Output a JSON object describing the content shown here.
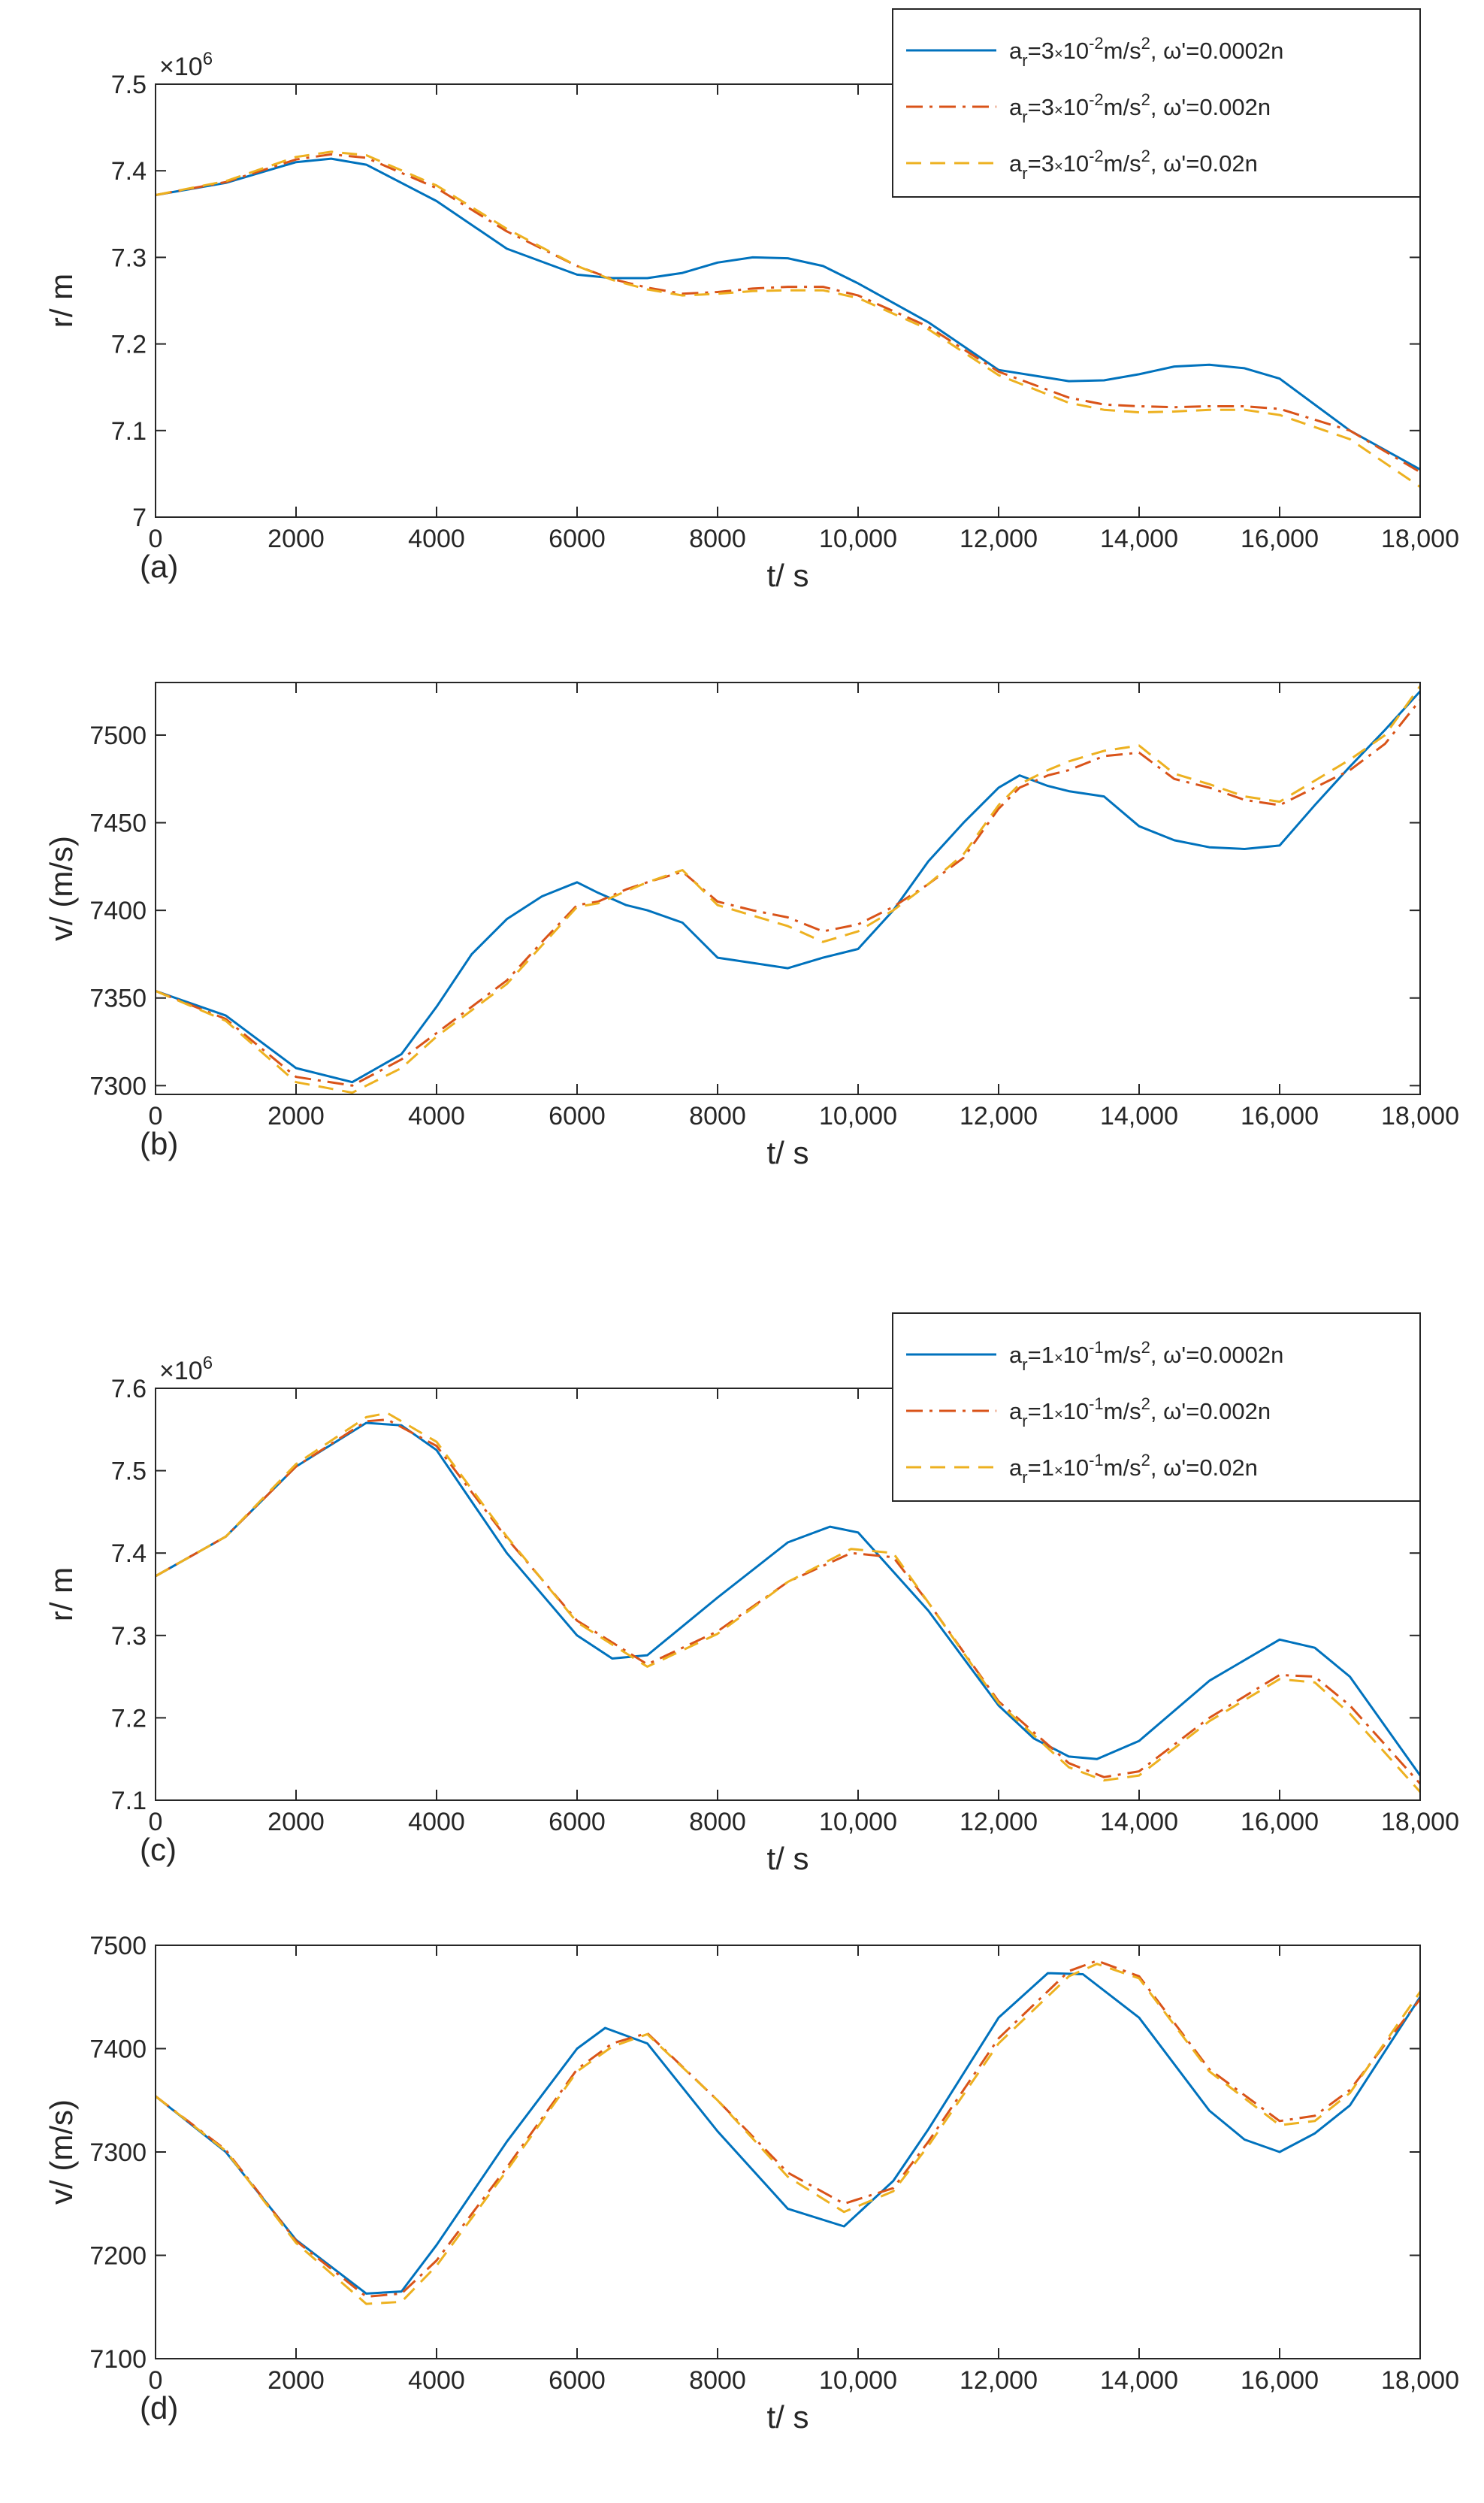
{
  "colors": {
    "blue": "#0072BD",
    "red": "#D95319",
    "orange": "#EDB120",
    "axis": "#262626"
  },
  "chart_data": [
    {
      "panel": "(a)",
      "type": "line",
      "title": "",
      "xlabel": "t/ s",
      "ylabel": "r/ m",
      "exponent": "6",
      "xlim": [
        0,
        18000
      ],
      "ylim": [
        7.0,
        7.5
      ],
      "xticks": [
        0,
        2000,
        4000,
        6000,
        8000,
        10000,
        12000,
        14000,
        16000,
        18000
      ],
      "xtick_labels": [
        "0",
        "2000",
        "4000",
        "6000",
        "8000",
        "10,000",
        "12,000",
        "14,000",
        "16,000",
        "18,000"
      ],
      "yticks": [
        7.0,
        7.1,
        7.2,
        7.3,
        7.4,
        7.5
      ],
      "ytick_labels": [
        "7",
        "7.1",
        "7.2",
        "7.3",
        "7.4",
        "7.5"
      ],
      "legend": {
        "position": "top-right",
        "accel_base": "3",
        "accel_exp": "-2"
      },
      "series": [
        {
          "name": "a_r=3×10^-2 m/s^2, ω'=0.0002n",
          "omega": "0.0002n",
          "style": "solid",
          "color": "#0072BD",
          "x": [
            0,
            1000,
            2000,
            2500,
            3000,
            4000,
            5000,
            6000,
            6500,
            7000,
            7500,
            8000,
            8500,
            9000,
            9500,
            10000,
            11000,
            12000,
            13000,
            13500,
            14000,
            14500,
            15000,
            15500,
            16000,
            17000,
            18000
          ],
          "y": [
            7.372,
            7.386,
            7.41,
            7.414,
            7.407,
            7.365,
            7.31,
            7.28,
            7.276,
            7.276,
            7.282,
            7.294,
            7.3,
            7.299,
            7.29,
            7.27,
            7.225,
            7.17,
            7.157,
            7.158,
            7.165,
            7.174,
            7.176,
            7.172,
            7.16,
            7.1,
            7.055
          ]
        },
        {
          "name": "a_r=3×10^-2 m/s^2, ω'=0.002n",
          "omega": "0.002n",
          "style": "dashdot",
          "color": "#D95319",
          "x": [
            0,
            1000,
            2000,
            2500,
            3000,
            4000,
            5000,
            6000,
            6500,
            7000,
            7500,
            8000,
            8500,
            9000,
            9500,
            10000,
            11000,
            12000,
            13000,
            13500,
            14000,
            14500,
            15000,
            15500,
            16000,
            17000,
            18000
          ],
          "y": [
            7.372,
            7.387,
            7.413,
            7.419,
            7.415,
            7.38,
            7.33,
            7.29,
            7.275,
            7.265,
            7.258,
            7.26,
            7.264,
            7.266,
            7.266,
            7.256,
            7.22,
            7.168,
            7.138,
            7.13,
            7.128,
            7.127,
            7.128,
            7.128,
            7.125,
            7.1,
            7.052
          ]
        },
        {
          "name": "a_r=3×10^-2 m/s^2, ω'=0.02n",
          "omega": "0.02n",
          "style": "dashed",
          "color": "#EDB120",
          "x": [
            0,
            1000,
            2000,
            2500,
            3000,
            4000,
            5000,
            6000,
            6500,
            7000,
            7500,
            8000,
            8500,
            9000,
            9500,
            10000,
            11000,
            12000,
            13000,
            13500,
            14000,
            14500,
            15000,
            15500,
            16000,
            17000,
            18000
          ],
          "y": [
            7.372,
            7.388,
            7.416,
            7.422,
            7.418,
            7.383,
            7.333,
            7.29,
            7.274,
            7.263,
            7.256,
            7.258,
            7.261,
            7.262,
            7.262,
            7.253,
            7.217,
            7.164,
            7.132,
            7.124,
            7.121,
            7.122,
            7.124,
            7.124,
            7.118,
            7.09,
            7.035
          ]
        }
      ]
    },
    {
      "panel": "(b)",
      "type": "line",
      "title": "",
      "xlabel": "t/ s",
      "ylabel": "v/ (m/s)",
      "xlim": [
        0,
        18000
      ],
      "ylim": [
        7295,
        7530
      ],
      "xticks": [
        0,
        2000,
        4000,
        6000,
        8000,
        10000,
        12000,
        14000,
        16000,
        18000
      ],
      "xtick_labels": [
        "0",
        "2000",
        "4000",
        "6000",
        "8000",
        "10,000",
        "12,000",
        "14,000",
        "16,000",
        "18,000"
      ],
      "yticks": [
        7300,
        7350,
        7400,
        7450,
        7500
      ],
      "ytick_labels": [
        "7300",
        "7350",
        "7400",
        "7450",
        "7500"
      ],
      "series": [
        {
          "name": "ω'=0.0002n",
          "style": "solid",
          "color": "#0072BD",
          "x": [
            0,
            1000,
            2000,
            2800,
            3500,
            4000,
            4500,
            5000,
            5500,
            6000,
            6300,
            6700,
            7000,
            7500,
            8000,
            8500,
            9000,
            9500,
            10000,
            10500,
            11000,
            11500,
            12000,
            12300,
            12700,
            13000,
            13500,
            14000,
            14500,
            15000,
            15500,
            16000,
            16500,
            17000,
            17500,
            18000
          ],
          "y": [
            7354,
            7340,
            7310,
            7302,
            7318,
            7345,
            7375,
            7395,
            7408,
            7416,
            7410,
            7403,
            7400,
            7393,
            7373,
            7370,
            7367,
            7373,
            7378,
            7400,
            7428,
            7450,
            7470,
            7477,
            7471,
            7468,
            7465,
            7448,
            7440,
            7436,
            7435,
            7437,
            7460,
            7482,
            7503,
            7525
          ]
        },
        {
          "name": "ω'=0.002n",
          "style": "dashdot",
          "color": "#D95319",
          "x": [
            0,
            1000,
            2000,
            2800,
            3500,
            4000,
            4500,
            5000,
            5500,
            6000,
            6300,
            6700,
            7000,
            7500,
            8000,
            8500,
            9000,
            9500,
            10000,
            10500,
            11000,
            11500,
            12000,
            12300,
            12700,
            13000,
            13500,
            14000,
            14500,
            15000,
            15500,
            16000,
            16500,
            17000,
            17500,
            18000
          ],
          "y": [
            7354,
            7338,
            7305,
            7300,
            7315,
            7330,
            7345,
            7360,
            7382,
            7403,
            7405,
            7412,
            7416,
            7422,
            7405,
            7400,
            7396,
            7388,
            7392,
            7402,
            7415,
            7430,
            7458,
            7470,
            7477,
            7480,
            7488,
            7490,
            7475,
            7470,
            7463,
            7460,
            7470,
            7480,
            7495,
            7520
          ]
        },
        {
          "name": "ω'=0.02n",
          "style": "dashed",
          "color": "#EDB120",
          "x": [
            0,
            1000,
            2000,
            2800,
            3500,
            4000,
            4500,
            5000,
            5500,
            6000,
            6300,
            6700,
            7000,
            7500,
            8000,
            8500,
            9000,
            9500,
            10000,
            10500,
            11000,
            11500,
            12000,
            12300,
            12700,
            13000,
            13500,
            14000,
            14500,
            15000,
            15500,
            16000,
            16500,
            17000,
            17500,
            18000
          ],
          "y": [
            7354,
            7337,
            7302,
            7296,
            7310,
            7328,
            7343,
            7358,
            7380,
            7402,
            7404,
            7411,
            7416,
            7423,
            7403,
            7397,
            7391,
            7382,
            7388,
            7400,
            7415,
            7432,
            7460,
            7472,
            7480,
            7485,
            7491,
            7494,
            7478,
            7472,
            7465,
            7462,
            7474,
            7486,
            7500,
            7528
          ]
        }
      ]
    },
    {
      "panel": "(c)",
      "type": "line",
      "title": "",
      "xlabel": "t/ s",
      "ylabel": "r/ m",
      "exponent": "6",
      "xlim": [
        0,
        18000
      ],
      "ylim": [
        7.1,
        7.6
      ],
      "xticks": [
        0,
        2000,
        4000,
        6000,
        8000,
        10000,
        12000,
        14000,
        16000,
        18000
      ],
      "xtick_labels": [
        "0",
        "2000",
        "4000",
        "6000",
        "8000",
        "10,000",
        "12,000",
        "14,000",
        "16,000",
        "18,000"
      ],
      "yticks": [
        7.1,
        7.2,
        7.3,
        7.4,
        7.5,
        7.6
      ],
      "ytick_labels": [
        "7.1",
        "7.2",
        "7.3",
        "7.4",
        "7.5",
        "7.6"
      ],
      "legend": {
        "position": "top-right",
        "accel_base": "1",
        "accel_exp": "-1"
      },
      "series": [
        {
          "name": "a_r=1×10^-1 m/s^2, ω'=0.0002n",
          "omega": "0.0002n",
          "style": "solid",
          "color": "#0072BD",
          "x": [
            0,
            1000,
            2000,
            3000,
            3500,
            4000,
            5000,
            6000,
            6500,
            7000,
            8000,
            9000,
            9600,
            10000,
            11000,
            12000,
            12500,
            13000,
            13400,
            14000,
            15000,
            16000,
            16500,
            17000,
            18000
          ],
          "y": [
            7.372,
            7.42,
            7.505,
            7.558,
            7.555,
            7.525,
            7.4,
            7.3,
            7.272,
            7.276,
            7.346,
            7.413,
            7.432,
            7.425,
            7.33,
            7.215,
            7.175,
            7.153,
            7.15,
            7.172,
            7.245,
            7.295,
            7.285,
            7.25,
            7.13
          ]
        },
        {
          "name": "a_r=1×10^-1 m/s^2, ω'=0.002n",
          "omega": "0.002n",
          "style": "dashdot",
          "color": "#D95319",
          "x": [
            0,
            1000,
            2000,
            3000,
            3300,
            4000,
            5000,
            6000,
            7000,
            8000,
            9000,
            9900,
            10500,
            11000,
            12000,
            13000,
            13500,
            14000,
            15000,
            16000,
            16500,
            17000,
            18000
          ],
          "y": [
            7.372,
            7.42,
            7.505,
            7.56,
            7.562,
            7.53,
            7.418,
            7.318,
            7.265,
            7.305,
            7.365,
            7.4,
            7.395,
            7.34,
            7.22,
            7.145,
            7.128,
            7.135,
            7.2,
            7.252,
            7.25,
            7.215,
            7.12
          ]
        },
        {
          "name": "a_r=1×10^-1 m/s^2, ω'=0.02n",
          "omega": "0.02n",
          "style": "dashed",
          "color": "#EDB120",
          "x": [
            0,
            1000,
            2000,
            3000,
            3300,
            4000,
            5000,
            6000,
            7000,
            8000,
            9000,
            9900,
            10500,
            11000,
            12000,
            13000,
            13500,
            14000,
            15000,
            16000,
            16500,
            17000,
            18000
          ],
          "y": [
            7.372,
            7.42,
            7.508,
            7.565,
            7.57,
            7.535,
            7.42,
            7.316,
            7.262,
            7.302,
            7.365,
            7.405,
            7.4,
            7.34,
            7.218,
            7.14,
            7.124,
            7.13,
            7.196,
            7.247,
            7.243,
            7.205,
            7.11
          ]
        }
      ]
    },
    {
      "panel": "(d)",
      "type": "line",
      "title": "",
      "xlabel": "t/ s",
      "ylabel": "v/ (m/s)",
      "xlim": [
        0,
        18000
      ],
      "ylim": [
        7100,
        7500
      ],
      "xticks": [
        0,
        2000,
        4000,
        6000,
        8000,
        10000,
        12000,
        14000,
        16000,
        18000
      ],
      "xtick_labels": [
        "0",
        "2000",
        "4000",
        "6000",
        "8000",
        "10,000",
        "12,000",
        "14,000",
        "16,000",
        "18,000"
      ],
      "yticks": [
        7100,
        7200,
        7300,
        7400,
        7500
      ],
      "ytick_labels": [
        "7100",
        "7200",
        "7300",
        "7400",
        "7500"
      ],
      "series": [
        {
          "name": "ω'=0.0002n",
          "style": "solid",
          "color": "#0072BD",
          "x": [
            0,
            1000,
            2000,
            3000,
            3500,
            4000,
            5000,
            6000,
            6400,
            7000,
            8000,
            9000,
            9800,
            10500,
            11000,
            12000,
            12700,
            13200,
            14000,
            15000,
            15500,
            16000,
            16500,
            17000,
            18000
          ],
          "y": [
            7354,
            7300,
            7215,
            7163,
            7165,
            7210,
            7310,
            7400,
            7420,
            7405,
            7320,
            7245,
            7228,
            7272,
            7322,
            7430,
            7473,
            7472,
            7430,
            7340,
            7312,
            7300,
            7318,
            7345,
            7450
          ]
        },
        {
          "name": "ω'=0.002n",
          "style": "dashdot",
          "color": "#D95319",
          "x": [
            0,
            1000,
            2000,
            3000,
            3500,
            4000,
            5000,
            6000,
            6500,
            7000,
            8000,
            9000,
            9800,
            10500,
            11000,
            12000,
            13000,
            13400,
            14000,
            15000,
            16000,
            16500,
            17000,
            18000
          ],
          "y": [
            7354,
            7302,
            7214,
            7160,
            7163,
            7195,
            7285,
            7380,
            7405,
            7415,
            7350,
            7280,
            7250,
            7265,
            7310,
            7410,
            7475,
            7485,
            7470,
            7380,
            7330,
            7335,
            7360,
            7448
          ]
        },
        {
          "name": "ω'=0.02n",
          "style": "dashed",
          "color": "#EDB120",
          "x": [
            0,
            1000,
            2000,
            3000,
            3500,
            4000,
            5000,
            6000,
            6500,
            7000,
            8000,
            9000,
            9800,
            10500,
            11000,
            12000,
            13000,
            13400,
            14000,
            15000,
            16000,
            16500,
            17000,
            18000
          ],
          "y": [
            7354,
            7301,
            7212,
            7153,
            7155,
            7190,
            7282,
            7378,
            7402,
            7414,
            7350,
            7276,
            7242,
            7262,
            7306,
            7405,
            7470,
            7482,
            7468,
            7378,
            7326,
            7330,
            7357,
            7455
          ]
        }
      ]
    }
  ]
}
